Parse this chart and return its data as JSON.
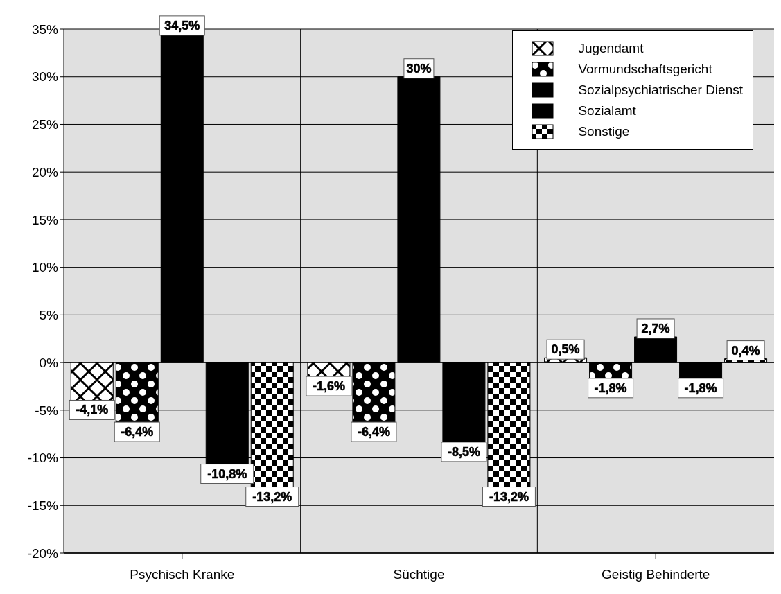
{
  "chart_data": {
    "type": "bar",
    "categories": [
      "Psychisch Kranke",
      "Süchtige",
      "Geistig Behinderte"
    ],
    "series": [
      {
        "name": "Jugendamt",
        "color": "#000000",
        "values": [
          -4.1,
          -1.6,
          0.5
        ],
        "value_labels": [
          "-4,1%",
          "-1,6%",
          "0,5%"
        ]
      },
      {
        "name": "Vormundschaftsgericht",
        "color": "#000000",
        "values": [
          -6.4,
          -6.4,
          -1.8
        ],
        "value_labels": [
          "-6,4%",
          "-6,4%",
          "-1,8%"
        ]
      },
      {
        "name": "Sozialpsychiatrischer Dienst",
        "color": "#000000",
        "values": [
          34.5,
          30,
          2.7
        ],
        "value_labels": [
          "34,5%",
          "30%",
          "2,7%"
        ]
      },
      {
        "name": "Sozialamt",
        "color": "#000000",
        "values": [
          -10.8,
          -8.5,
          -1.8
        ],
        "value_labels": [
          "-10,8%",
          "-8,5%",
          "-1,8%"
        ]
      },
      {
        "name": "Sonstige",
        "color": "#000000",
        "values": [
          -13.2,
          -13.2,
          0.4
        ],
        "value_labels": [
          "-13,2%",
          "-13,2%",
          "0,4%"
        ]
      }
    ],
    "ylim": [
      -20,
      35
    ],
    "yticks": [
      {
        "value": -20,
        "label": "-20%"
      },
      {
        "value": -15,
        "label": "-15%"
      },
      {
        "value": -10,
        "label": "-10%"
      },
      {
        "value": -5,
        "label": "-5%"
      },
      {
        "value": 0,
        "label": "0%"
      },
      {
        "value": 5,
        "label": "5%"
      },
      {
        "value": 10,
        "label": "10%"
      },
      {
        "value": 15,
        "label": "15%"
      },
      {
        "value": 20,
        "label": "20%"
      },
      {
        "value": 25,
        "label": "25%"
      },
      {
        "value": 30,
        "label": "30%"
      },
      {
        "value": 35,
        "label": "35%"
      }
    ],
    "grid": true,
    "legend": "top right"
  }
}
